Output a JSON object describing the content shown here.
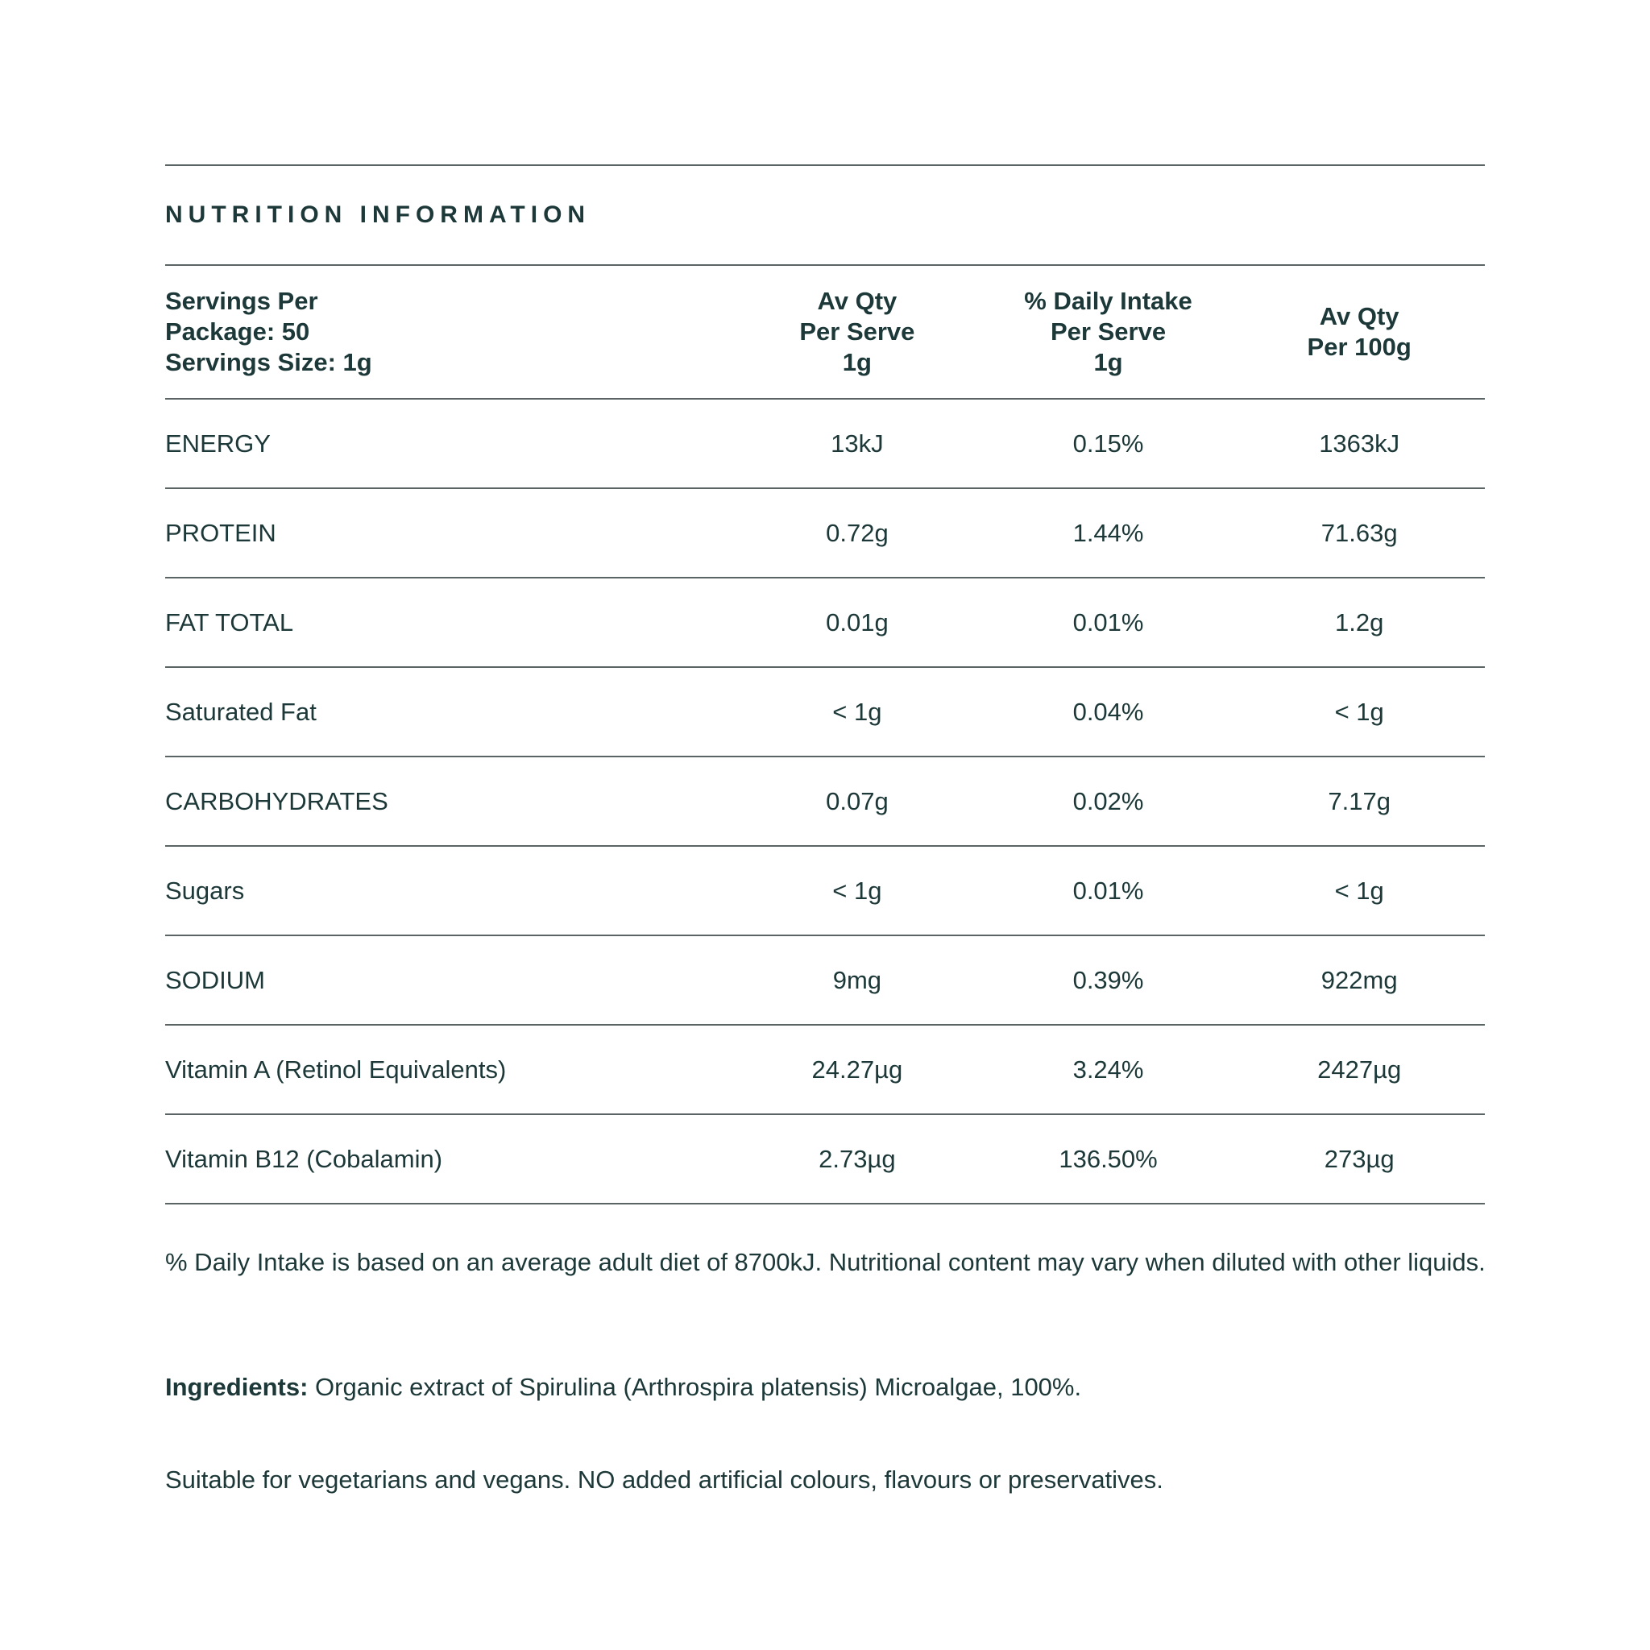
{
  "title": "NUTRITION INFORMATION",
  "header": {
    "col0": [
      "Servings Per",
      "Package: 50",
      "Servings Size: 1g"
    ],
    "col1": [
      "Av Qty",
      "Per Serve",
      "1g"
    ],
    "col2": [
      "% Daily Intake",
      "Per Serve",
      "1g"
    ],
    "col3": [
      "Av Qty",
      "Per 100g"
    ]
  },
  "rows": [
    [
      "ENERGY",
      "13kJ",
      "0.15%",
      "1363kJ"
    ],
    [
      "PROTEIN",
      "0.72g",
      "1.44%",
      "71.63g"
    ],
    [
      "FAT TOTAL",
      "0.01g",
      "0.01%",
      "1.2g"
    ],
    [
      "Saturated Fat",
      "< 1g",
      "0.04%",
      "< 1g"
    ],
    [
      "CARBOHYDRATES",
      "0.07g",
      "0.02%",
      "7.17g"
    ],
    [
      "Sugars",
      "< 1g",
      "0.01%",
      "< 1g"
    ],
    [
      "SODIUM",
      "9mg",
      "0.39%",
      "922mg"
    ],
    [
      "Vitamin A (Retinol Equivalents)",
      "24.27µg",
      "3.24%",
      "2427µg"
    ],
    [
      "Vitamin B12 (Cobalamin)",
      "2.73µg",
      "136.50%",
      "273µg"
    ]
  ],
  "footnote": "% Daily Intake is based on an average adult diet of 8700kJ. Nutritional content may vary when diluted with other liquids.",
  "ingredients": {
    "label": "Ingredients:",
    "text": " Organic extract of Spirulina (Arthrospira platensis) Microalgae, 100%."
  },
  "suitability": "Suitable for vegetarians and vegans. NO added artificial colours, flavours or preservatives.",
  "colors": {
    "text": "#1d3838",
    "rule": "#5a6464"
  }
}
